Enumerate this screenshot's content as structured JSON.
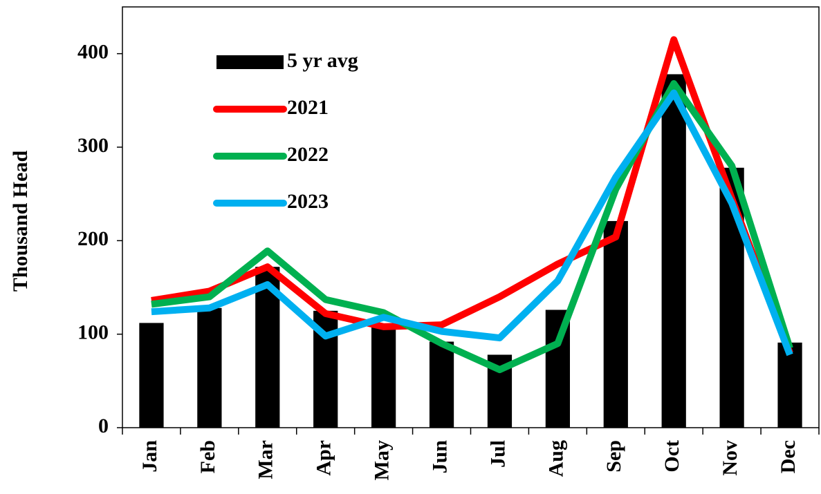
{
  "chart_data": {
    "type": "bar",
    "y_label": "Thousand Head",
    "categories": [
      "Jan",
      "Feb",
      "Mar",
      "Apr",
      "May",
      "Jun",
      "Jul",
      "Aug",
      "Sep",
      "Oct",
      "Nov",
      "Dec"
    ],
    "series": [
      {
        "name": "5 yr avg",
        "type": "bar",
        "color": "#000000",
        "values": [
          112,
          128,
          172,
          125,
          110,
          92,
          78,
          126,
          221,
          378,
          278,
          91
        ]
      },
      {
        "name": "2021",
        "type": "line",
        "color": "#ff0000",
        "values": [
          136,
          146,
          172,
          122,
          108,
          110,
          140,
          175,
          204,
          415,
          245,
          80
        ]
      },
      {
        "name": "2022",
        "type": "line",
        "color": "#00b050",
        "values": [
          132,
          140,
          189,
          137,
          123,
          90,
          62,
          90,
          255,
          368,
          280,
          85
        ]
      },
      {
        "name": "2023",
        "type": "line",
        "color": "#00b0f0",
        "values": [
          124,
          128,
          153,
          98,
          118,
          103,
          96,
          157,
          268,
          358,
          240,
          78
        ]
      }
    ],
    "ylim": [
      0,
      450
    ],
    "yticks": [
      0,
      100,
      200,
      300,
      400
    ]
  }
}
